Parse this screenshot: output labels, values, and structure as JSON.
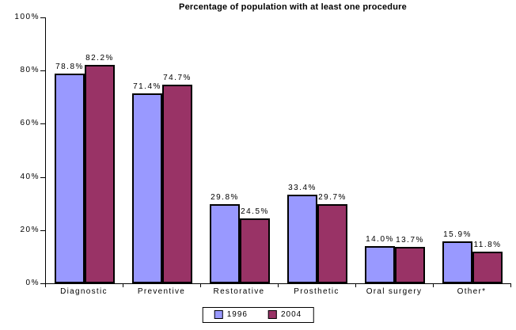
{
  "title": "Percentage of population with at least one procedure",
  "chart_data": {
    "type": "bar",
    "title": "Percentage of population with at least one procedure",
    "categories": [
      "Diagnostic",
      "Preventive",
      "Restorative",
      "Prosthetic",
      "Oral surgery",
      "Other*"
    ],
    "series": [
      {
        "name": "1996",
        "color": "#9999FF",
        "values": [
          78.8,
          71.4,
          29.8,
          33.4,
          14.0,
          15.9
        ]
      },
      {
        "name": "2004",
        "color": "#993366",
        "values": [
          82.2,
          74.7,
          24.5,
          29.7,
          13.7,
          11.8
        ]
      }
    ],
    "xlabel": "",
    "ylabel": "",
    "ylim": [
      0,
      100
    ],
    "yticks": [
      "0%",
      "20%",
      "40%",
      "60%",
      "80%",
      "100%"
    ],
    "grid": false,
    "legend_position": "bottom",
    "value_label_suffix": "%",
    "bar_border_color": "#000000",
    "axis_color": "#000000"
  }
}
